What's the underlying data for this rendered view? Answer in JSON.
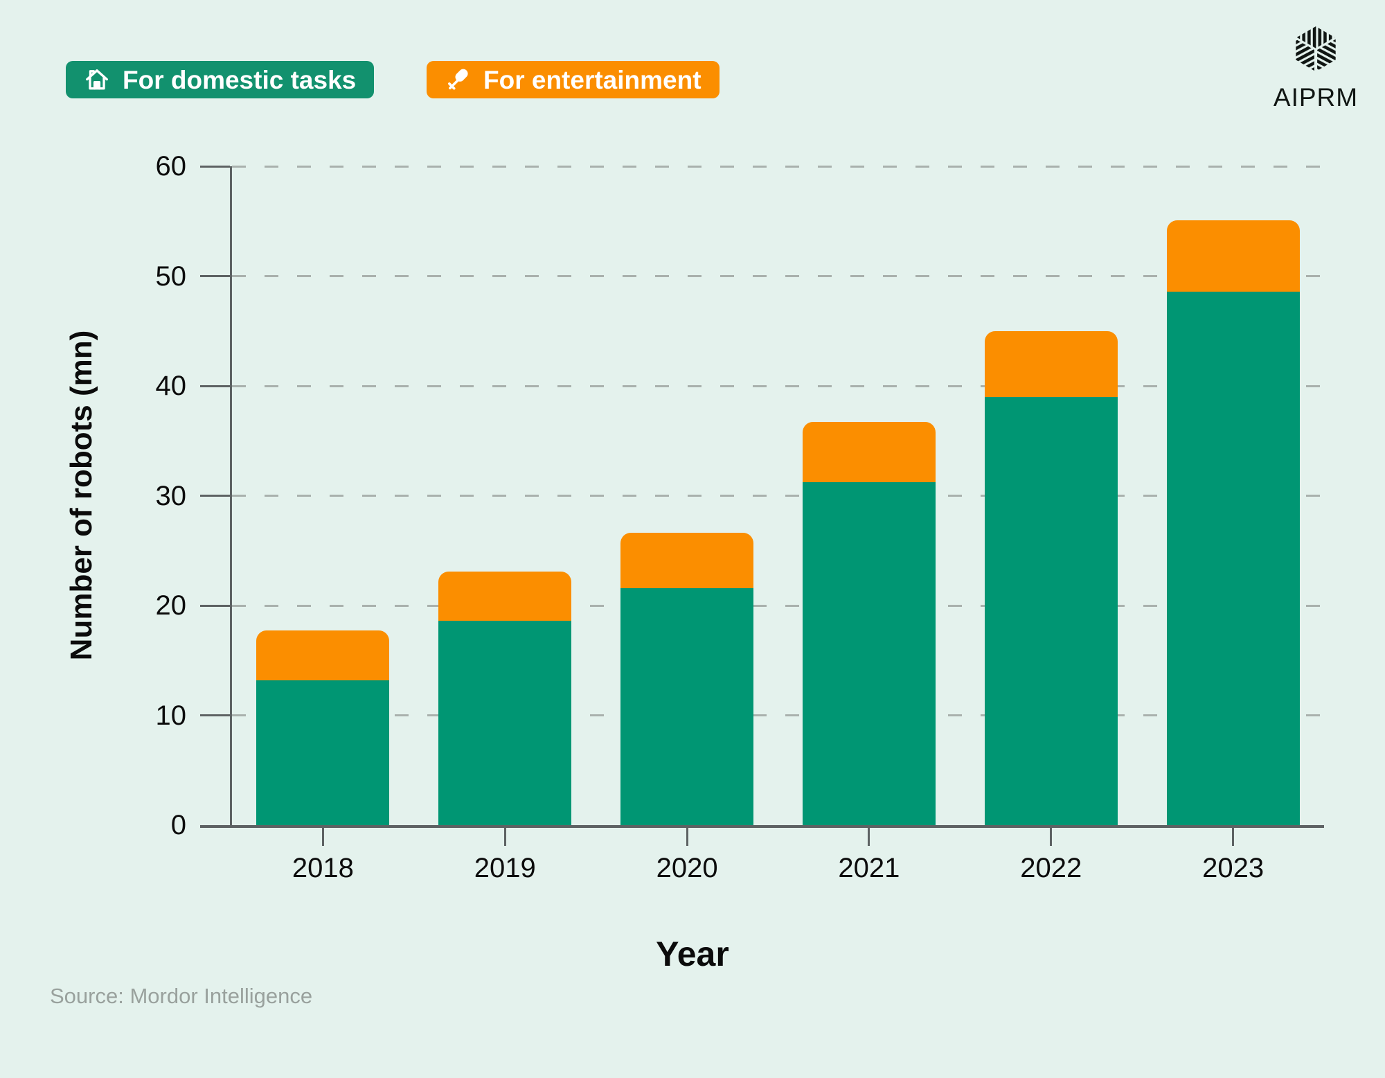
{
  "brand": {
    "logo_text": "AIPRM"
  },
  "legend": {
    "items": [
      {
        "label": "For domestic tasks",
        "icon": "house-icon",
        "color": "#12916E",
        "text_color": "#FFFFFF"
      },
      {
        "label": "For entertainment",
        "icon": "microphone-icon",
        "color": "#FB8E00",
        "text_color": "#FFFFFF"
      }
    ]
  },
  "source": {
    "text": "Source: Mordor Intelligence"
  },
  "colors": {
    "background": "#E4F2ED",
    "domestic_green": "#009673",
    "entertainment_orange": "#FB8E00",
    "axis_gray": "#5d6263",
    "grid_dash_gray": "#A9B1AD",
    "source_gray": "#99A19D",
    "text_black": "#0b0b0b"
  },
  "chart_data": {
    "type": "bar",
    "stacked": true,
    "title": "",
    "xlabel": "Year",
    "ylabel": "Number of robots (mn)",
    "categories": [
      "2018",
      "2019",
      "2020",
      "2021",
      "2022",
      "2023"
    ],
    "series": [
      {
        "name": "For domestic tasks",
        "color": "#009673",
        "values": [
          13.2,
          18.6,
          21.6,
          31.2,
          39,
          48.6
        ]
      },
      {
        "name": "For entertainment",
        "color": "#FB8E00",
        "values": [
          4.5,
          4.5,
          5,
          5.5,
          6,
          6.5
        ]
      }
    ],
    "totals": [
      17.7,
      23.1,
      26.6,
      36.7,
      45,
      55.1
    ],
    "ylim": [
      0,
      60
    ],
    "yticks": [
      0,
      10,
      20,
      30,
      40,
      50,
      60
    ],
    "grid": "dashed-horizontal",
    "legend_position": "top-left",
    "bar_corner_radius": 15
  }
}
